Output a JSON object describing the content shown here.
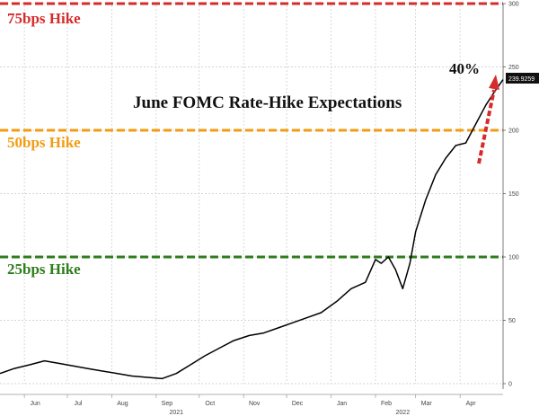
{
  "chart_data": {
    "type": "line",
    "title": "June FOMC Rate-Hike Expectations",
    "ylim": [
      0,
      300
    ],
    "yticks": [
      "0",
      "50",
      "100",
      "150",
      "200",
      "250",
      "300"
    ],
    "month_labels": [
      "Jun",
      "Jul",
      "Aug",
      "Sep",
      "Oct",
      "Nov",
      "Dec",
      "Jan",
      "Feb",
      "Mar",
      "Apr"
    ],
    "year_labels": [
      "2021",
      "2022"
    ],
    "grid": true,
    "reference_lines": [
      {
        "label": "75bps Hike",
        "value": 300,
        "color": "#d62b2b"
      },
      {
        "label": "50bps Hike",
        "value": 200,
        "color": "#f39c12"
      },
      {
        "label": "25bps Hike",
        "value": 100,
        "color": "#2e7d1c"
      }
    ],
    "annotation_pct": "40%",
    "last_value_label": "239.9259",
    "x": [
      "2021-05-15",
      "2021-05-25",
      "2021-06-05",
      "2021-06-15",
      "2021-06-25",
      "2021-07-05",
      "2021-07-15",
      "2021-07-25",
      "2021-08-05",
      "2021-08-15",
      "2021-08-25",
      "2021-09-05",
      "2021-09-15",
      "2021-09-25",
      "2021-10-05",
      "2021-10-15",
      "2021-10-25",
      "2021-11-05",
      "2021-11-15",
      "2021-11-25",
      "2021-12-05",
      "2021-12-15",
      "2021-12-25",
      "2022-01-05",
      "2022-01-15",
      "2022-01-25",
      "2022-02-01",
      "2022-02-05",
      "2022-02-10",
      "2022-02-15",
      "2022-02-20",
      "2022-02-25",
      "2022-03-01",
      "2022-03-08",
      "2022-03-15",
      "2022-03-22",
      "2022-03-29",
      "2022-04-05",
      "2022-04-12",
      "2022-04-19",
      "2022-04-26",
      "2022-05-01"
    ],
    "values": [
      8,
      12,
      15,
      18,
      16,
      14,
      12,
      10,
      8,
      6,
      5,
      4,
      8,
      15,
      22,
      28,
      34,
      38,
      40,
      44,
      48,
      52,
      56,
      65,
      75,
      80,
      98,
      95,
      100,
      90,
      75,
      95,
      120,
      145,
      165,
      178,
      188,
      190,
      205,
      220,
      232,
      240
    ]
  }
}
